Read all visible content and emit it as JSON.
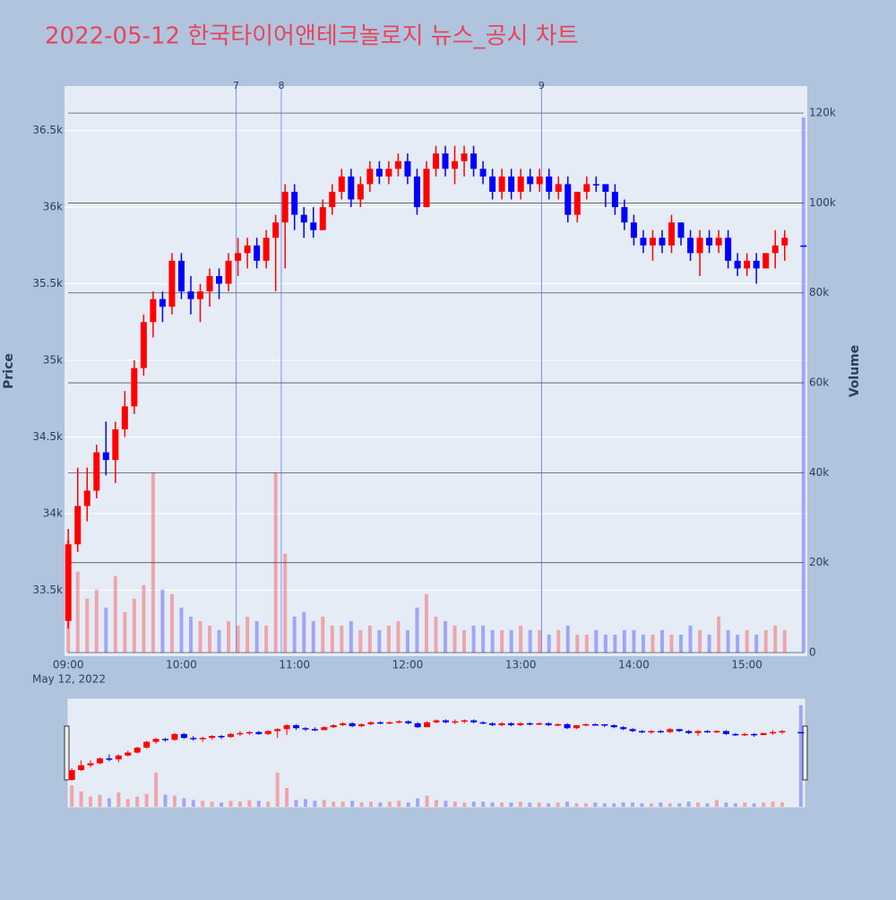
{
  "chart_data": {
    "type": "candlestick",
    "title": "2022-05-12 한국타이어앤테크놀로지 뉴스_공시 차트",
    "y_title": "Price",
    "y2_title": "Volume",
    "x_date_label": "May 12, 2022",
    "increasing_color": "#ff0000",
    "decreasing_color": "#0000ff",
    "x": [
      "09:00",
      "09:05",
      "09:10",
      "09:15",
      "09:20",
      "09:25",
      "09:30",
      "09:35",
      "09:40",
      "09:45",
      "09:50",
      "09:55",
      "10:00",
      "10:05",
      "10:10",
      "10:15",
      "10:20",
      "10:25",
      "10:30",
      "10:35",
      "10:40",
      "10:45",
      "10:50",
      "10:55",
      "11:00",
      "11:05",
      "11:10",
      "11:15",
      "11:20",
      "11:25",
      "11:30",
      "11:35",
      "11:40",
      "11:45",
      "11:50",
      "11:55",
      "12:00",
      "12:05",
      "12:10",
      "12:15",
      "12:20",
      "12:25",
      "12:30",
      "12:35",
      "12:40",
      "12:45",
      "12:50",
      "12:55",
      "13:00",
      "13:05",
      "13:10",
      "13:15",
      "13:20",
      "13:25",
      "13:30",
      "13:35",
      "13:40",
      "13:45",
      "13:50",
      "13:55",
      "14:00",
      "14:05",
      "14:10",
      "14:15",
      "14:20",
      "14:25",
      "14:30",
      "14:35",
      "14:40",
      "14:45",
      "14:50",
      "14:55",
      "15:00",
      "15:05",
      "15:10",
      "15:15",
      "15:20",
      "15:30"
    ],
    "open": [
      33300,
      33800,
      34050,
      34150,
      34400,
      34350,
      34550,
      34700,
      34950,
      35250,
      35400,
      35350,
      35650,
      35450,
      35400,
      35450,
      35550,
      35500,
      35650,
      35700,
      35750,
      35650,
      35800,
      35900,
      36100,
      35950,
      35900,
      35850,
      36000,
      36100,
      36200,
      36050,
      36150,
      36250,
      36200,
      36250,
      36300,
      36200,
      36000,
      36250,
      36350,
      36250,
      36300,
      36350,
      36250,
      36200,
      36100,
      36200,
      36100,
      36200,
      36150,
      36200,
      36100,
      36150,
      35950,
      36100,
      36150,
      36150,
      36100,
      36000,
      35900,
      35800,
      35750,
      35800,
      35750,
      35900,
      35800,
      35700,
      35800,
      35750,
      35800,
      35650,
      35600,
      35650,
      35600,
      35700,
      35750,
      35750
    ],
    "high": [
      33900,
      34300,
      34300,
      34450,
      34600,
      34600,
      34800,
      35000,
      35300,
      35450,
      35450,
      35700,
      35700,
      35550,
      35500,
      35600,
      35600,
      35700,
      35800,
      35800,
      35800,
      35850,
      35950,
      36150,
      36150,
      36000,
      36000,
      36050,
      36150,
      36250,
      36250,
      36200,
      36300,
      36300,
      36300,
      36350,
      36350,
      36250,
      36300,
      36400,
      36400,
      36400,
      36400,
      36400,
      36300,
      36250,
      36250,
      36250,
      36250,
      36250,
      36250,
      36250,
      36200,
      36200,
      36100,
      36200,
      36200,
      36150,
      36150,
      36050,
      35950,
      35850,
      35850,
      35850,
      35950,
      35900,
      35850,
      35850,
      35850,
      35850,
      35850,
      35700,
      35700,
      35700,
      35700,
      35850,
      35850,
      35750
    ],
    "low": [
      33250,
      33750,
      33950,
      34100,
      34250,
      34200,
      34500,
      34650,
      34900,
      35150,
      35250,
      35300,
      35400,
      35300,
      35250,
      35350,
      35400,
      35450,
      35550,
      35600,
      35600,
      35600,
      35450,
      35600,
      35850,
      35800,
      35800,
      35850,
      35950,
      36050,
      36000,
      36000,
      36100,
      36150,
      36150,
      36200,
      36150,
      35950,
      36000,
      36200,
      36200,
      36150,
      36200,
      36200,
      36150,
      36050,
      36050,
      36050,
      36050,
      36100,
      36100,
      36050,
      36050,
      35900,
      35900,
      36050,
      36100,
      36000,
      35950,
      35850,
      35750,
      35700,
      35650,
      35700,
      35700,
      35750,
      35650,
      35550,
      35700,
      35700,
      35600,
      35550,
      35550,
      35500,
      35600,
      35600,
      35650,
      35750
    ],
    "close": [
      33800,
      34050,
      34150,
      34400,
      34350,
      34550,
      34700,
      34950,
      35250,
      35400,
      35350,
      35650,
      35450,
      35400,
      35450,
      35550,
      35500,
      35650,
      35700,
      35750,
      35650,
      35800,
      35900,
      36100,
      35950,
      35900,
      35850,
      36000,
      36100,
      36200,
      36050,
      36150,
      36250,
      36200,
      36250,
      36300,
      36200,
      36000,
      36250,
      36350,
      36250,
      36300,
      36350,
      36250,
      36200,
      36100,
      36200,
      36100,
      36200,
      36150,
      36200,
      36100,
      36150,
      35950,
      36100,
      36150,
      36150,
      36100,
      36000,
      35900,
      35800,
      35750,
      35800,
      35750,
      35900,
      35800,
      35700,
      35800,
      35750,
      35800,
      35650,
      35600,
      35650,
      35600,
      35700,
      35750,
      35800,
      35750
    ],
    "volume": [
      25000,
      18000,
      12000,
      14000,
      10000,
      17000,
      9000,
      12000,
      15000,
      40000,
      14000,
      13000,
      10000,
      8000,
      7000,
      6000,
      5000,
      7000,
      6000,
      8000,
      7000,
      6000,
      40000,
      22000,
      8000,
      9000,
      7000,
      8000,
      6000,
      6000,
      7000,
      5000,
      6000,
      5000,
      6000,
      7000,
      5000,
      10000,
      13000,
      8000,
      7000,
      6000,
      5000,
      6000,
      6000,
      5000,
      5000,
      5000,
      6000,
      5000,
      5000,
      4000,
      5000,
      6000,
      4000,
      4000,
      5000,
      4000,
      4000,
      5000,
      5000,
      4000,
      4000,
      5000,
      4000,
      4000,
      6000,
      5000,
      4000,
      8000,
      5000,
      4000,
      5000,
      4000,
      5000,
      6000,
      5000,
      119000
    ],
    "xlim": [
      "08:58",
      "15:32"
    ],
    "xticks": [
      "09:00",
      "10:00",
      "11:00",
      "12:00",
      "13:00",
      "14:00",
      "15:00"
    ],
    "ylim": [
      33070,
      36790
    ],
    "yticks": [
      {
        "value": 33500,
        "label": "33.5k"
      },
      {
        "value": 34000,
        "label": "34k"
      },
      {
        "value": 34500,
        "label": "34.5k"
      },
      {
        "value": 35000,
        "label": "35k"
      },
      {
        "value": 35500,
        "label": "35.5k"
      },
      {
        "value": 36000,
        "label": "36k"
      },
      {
        "value": 36500,
        "label": "36.5k"
      }
    ],
    "y2lim": [
      0,
      126000
    ],
    "y2ticks": [
      0,
      {
        "value": 20000,
        "label": "20k"
      },
      {
        "value": 40000,
        "label": "40k"
      },
      {
        "value": 60000,
        "label": "60k"
      },
      {
        "value": 80000,
        "label": "80k"
      },
      {
        "value": 100000,
        "label": "100k"
      },
      {
        "value": 120000,
        "label": "120k"
      }
    ],
    "news": [
      {
        "label": "7",
        "x": "10:29"
      },
      {
        "label": "8",
        "x": "10:53"
      },
      {
        "label": "9",
        "x": "13:11"
      }
    ],
    "grid": true
  }
}
